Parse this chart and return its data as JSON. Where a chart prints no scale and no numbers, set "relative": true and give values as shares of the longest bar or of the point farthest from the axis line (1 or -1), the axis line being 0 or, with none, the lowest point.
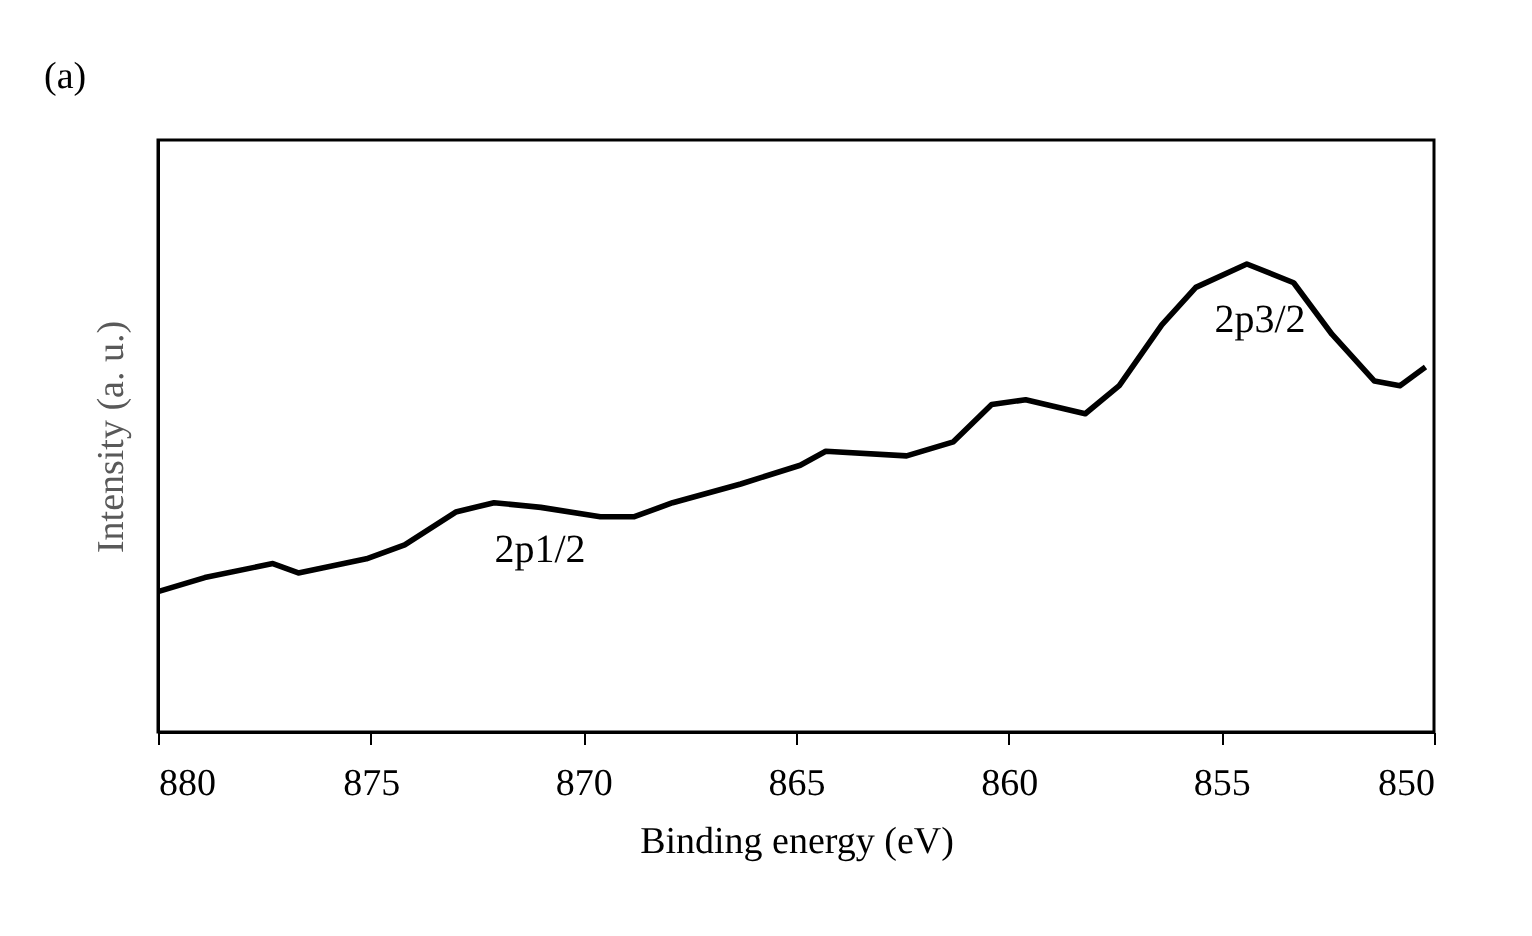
{
  "chart_data": {
    "type": "line",
    "title": "(a)",
    "xlabel": "Binding energy (eV)",
    "ylabel": "Intensity (a. u.)",
    "relative": true,
    "xlim": [
      880,
      850
    ],
    "xticks": [
      880,
      875,
      870,
      865,
      860,
      855,
      850
    ],
    "tick_labels": "x",
    "grid": false,
    "marker": "none",
    "line_style": "solid",
    "series": [
      {
        "color": "#000000",
        "x": [
          880.0,
          878.9,
          877.3,
          876.7,
          875.1,
          874.2,
          873.0,
          872.1,
          871.0,
          869.6,
          868.8,
          867.9,
          866.3,
          864.9,
          864.3,
          862.4,
          861.3,
          860.4,
          859.6,
          858.2,
          857.4,
          856.4,
          855.6,
          854.4,
          853.3,
          852.4,
          851.4,
          850.8,
          850.2
        ],
        "values": [
          0.3,
          0.33,
          0.36,
          0.34,
          0.37,
          0.4,
          0.47,
          0.49,
          0.48,
          0.46,
          0.46,
          0.49,
          0.53,
          0.57,
          0.6,
          0.59,
          0.62,
          0.7,
          0.71,
          0.68,
          0.74,
          0.87,
          0.95,
          1.0,
          0.96,
          0.85,
          0.75,
          0.74,
          0.78
        ]
      }
    ],
    "annotations": [
      "2p1/2",
      "2p3/2"
    ]
  }
}
